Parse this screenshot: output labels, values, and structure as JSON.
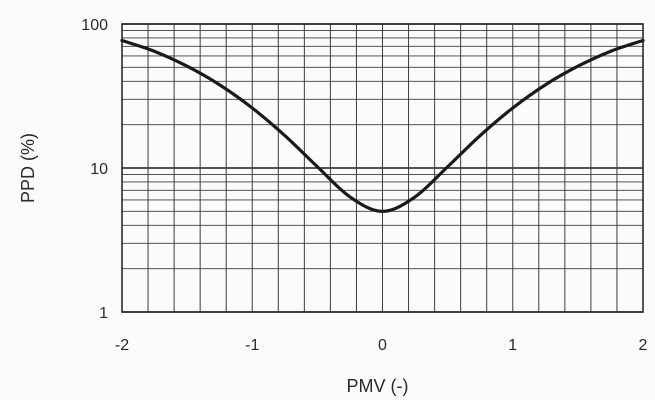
{
  "chart_data": {
    "type": "line",
    "title": "",
    "xlabel": "PMV (-)",
    "ylabel": "PPD (%)",
    "xlim": [
      -2,
      2
    ],
    "ylim": [
      1,
      100
    ],
    "yscale": "log",
    "grid": true,
    "legend": "none",
    "x_ticks": [
      -2,
      -1,
      0,
      1,
      2
    ],
    "x_tick_labels": [
      "-2",
      "-1",
      "0",
      "1",
      "2"
    ],
    "y_ticks": [
      1,
      10,
      100
    ],
    "y_tick_labels": [
      "1",
      "10",
      "100"
    ],
    "series": [
      {
        "x": [
          -2,
          -1.75,
          -1.5,
          -1.25,
          -1,
          -0.75,
          -0.5,
          -0.25,
          0,
          0.25,
          0.5,
          0.75,
          1,
          1.25,
          1.5,
          1.75,
          2
        ],
        "y": [
          76.8,
          64.6,
          50.9,
          37.8,
          26.1,
          16.8,
          10.2,
          6.3,
          5.0,
          6.3,
          10.2,
          16.8,
          26.1,
          37.8,
          50.9,
          64.6,
          76.8
        ],
        "color": "#1a1a1a"
      }
    ],
    "colors": {
      "grid": "#3c3c3c",
      "line": "#1a1a1a",
      "text": "#2a2a2a",
      "background": "#fbfbf9"
    }
  }
}
